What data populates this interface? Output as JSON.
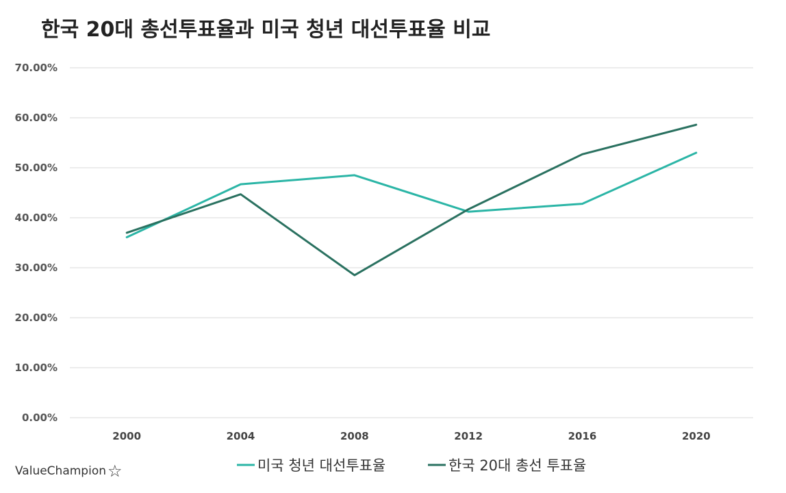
{
  "chart_data": {
    "type": "line",
    "title": "한국 20대 총선투표율과 미국 청년 대선투표율 비교",
    "xlabel": "",
    "ylabel": "",
    "x": [
      "2000",
      "2004",
      "2008",
      "2012",
      "2016",
      "2020"
    ],
    "ylim": [
      0,
      70
    ],
    "yticks": [
      "0.00%",
      "10.00%",
      "20.00%",
      "30.00%",
      "40.00%",
      "50.00%",
      "60.00%",
      "70.00%"
    ],
    "grid": true,
    "legend_position": "bottom",
    "series": [
      {
        "name": "미국 청년 대선투표율",
        "color": "#2bb5a6",
        "values": [
          36.1,
          46.7,
          48.5,
          41.2,
          42.8,
          53.0
        ]
      },
      {
        "name": "한국 20대 총선 투표율",
        "color": "#2a7160",
        "values": [
          37.0,
          44.7,
          28.5,
          41.7,
          52.7,
          58.6
        ]
      }
    ]
  },
  "brand": {
    "name": "ValueChampion",
    "icon": "star-outline-icon"
  }
}
